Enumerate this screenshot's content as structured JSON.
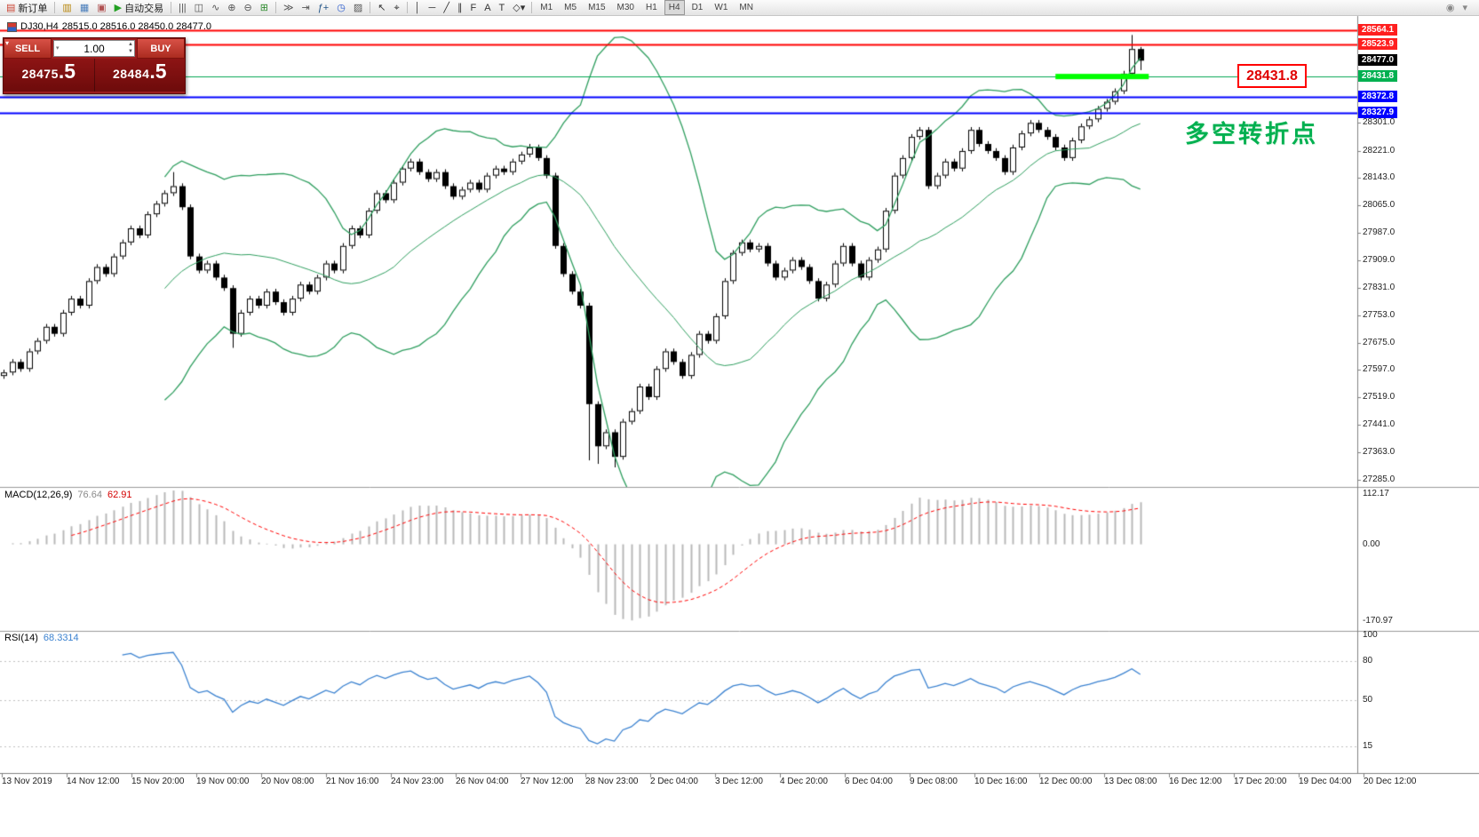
{
  "toolbar": {
    "left_items": [
      {
        "name": "new-order-button",
        "icon": "▤",
        "icon_color": "#cc4433",
        "label": "新订单"
      },
      {
        "sep": true
      },
      {
        "name": "charts-grid-icon",
        "icon": "▥",
        "icon_color": "#b8860b"
      },
      {
        "name": "market-watch-icon",
        "icon": "▦",
        "icon_color": "#4a7ebb"
      },
      {
        "name": "navigator-icon",
        "icon": "▣",
        "icon_color": "#b05050"
      },
      {
        "name": "autotrading-button",
        "icon": "▶",
        "icon_color": "#22a022",
        "label": "自动交易"
      },
      {
        "sep": true
      },
      {
        "name": "bar-chart-icon",
        "icon": "|||",
        "icon_color": "#555555"
      },
      {
        "name": "candlestick-chart-icon",
        "icon": "◫",
        "icon_color": "#555555"
      },
      {
        "name": "line-chart-icon",
        "icon": "∿",
        "icon_color": "#555555"
      },
      {
        "name": "zoom-in-icon",
        "icon": "⊕",
        "icon_color": "#555555"
      },
      {
        "name": "zoom-out-icon",
        "icon": "⊖",
        "icon_color": "#555555"
      },
      {
        "name": "tile-windows-icon",
        "icon": "⊞",
        "icon_color": "#2e8b2e"
      },
      {
        "sep": true
      },
      {
        "name": "auto-scroll-icon",
        "icon": "≫",
        "icon_color": "#555555"
      },
      {
        "name": "chart-shift-icon",
        "icon": "⇥",
        "icon_color": "#555555"
      },
      {
        "name": "indicators-icon",
        "icon": "ƒ+",
        "icon_color": "#225588"
      },
      {
        "name": "period-dropdown-icon",
        "icon": "◷",
        "icon_color": "#2255cc"
      },
      {
        "name": "templates-icon",
        "icon": "▨",
        "icon_color": "#555555"
      },
      {
        "sep": true
      },
      {
        "name": "cursor-icon",
        "icon": "↖",
        "icon_color": "#333333"
      },
      {
        "name": "crosshair-icon",
        "icon": "⌖",
        "icon_color": "#333333"
      },
      {
        "sep": true
      },
      {
        "name": "vertical-line-icon",
        "icon": "│",
        "icon_color": "#333333"
      },
      {
        "name": "horizontal-line-icon",
        "icon": "─",
        "icon_color": "#333333"
      },
      {
        "name": "trendline-icon",
        "icon": "╱",
        "icon_color": "#333333"
      },
      {
        "name": "channel-icon",
        "icon": "∥",
        "icon_color": "#333333"
      },
      {
        "name": "fibonacci-icon",
        "icon": "F",
        "icon_color": "#333333"
      },
      {
        "name": "text-icon",
        "icon": "A",
        "icon_color": "#333333"
      },
      {
        "name": "label-icon",
        "icon": "T",
        "icon_color": "#333333"
      },
      {
        "name": "shapes-icon",
        "icon": "◇▾",
        "icon_color": "#333333"
      }
    ],
    "timeframes": [
      "M1",
      "M5",
      "M15",
      "M30",
      "H1",
      "H4",
      "D1",
      "W1",
      "MN"
    ],
    "active_timeframe": "H4",
    "right_items": [
      {
        "name": "community-icon",
        "icon": "◉",
        "icon_color": "#888888"
      },
      {
        "name": "menu-arrow-icon",
        "icon": "▾",
        "icon_color": "#888888"
      }
    ]
  },
  "trade_panel": {
    "sell_label": "SELL",
    "buy_label": "BUY",
    "volume": "1.00",
    "sell_price_main": "28475",
    "sell_price_frac": ".5",
    "buy_price_main": "28484",
    "buy_price_frac": ".5"
  },
  "chart_header": {
    "symbol_period": "DJ30,H4",
    "ohlc": "28515.0 28516.0 28450.0 28477.0"
  },
  "annotations": {
    "price_label": "28431.8",
    "note_text": "多空转折点",
    "note_color": "#00b050"
  },
  "price_axis": {
    "special": [
      {
        "text": "28564.1",
        "bg": "#ff1f1f",
        "price": 28564.1
      },
      {
        "text": "28523.9",
        "bg": "#ff1f1f",
        "price": 28523.9
      },
      {
        "text": "28477.0",
        "bg": "#000000",
        "price": 28477.0
      },
      {
        "text": "28431.8",
        "bg": "#00b050",
        "price": 28431.8
      },
      {
        "text": "28372.8",
        "bg": "#0000ff",
        "price": 28372.8
      },
      {
        "text": "28327.9",
        "bg": "#0000ff",
        "price": 28327.9
      }
    ],
    "ticks": [
      "28301.0",
      "28221.0",
      "28143.0",
      "28065.0",
      "27987.0",
      "27909.0",
      "27831.0",
      "27753.0",
      "27675.0",
      "27597.0",
      "27519.0",
      "27441.0",
      "27363.0",
      "27285.0"
    ]
  },
  "time_axis": [
    "13 Nov 2019",
    "14 Nov 12:00",
    "15 Nov 20:00",
    "19 Nov 00:00",
    "20 Nov 08:00",
    "21 Nov 16:00",
    "24 Nov 23:00",
    "26 Nov 04:00",
    "27 Nov 12:00",
    "28 Nov 23:00",
    "2 Dec 04:00",
    "3 Dec 12:00",
    "4 Dec 20:00",
    "6 Dec 04:00",
    "9 Dec 08:00",
    "10 Dec 16:00",
    "12 Dec 00:00",
    "13 Dec 08:00",
    "16 Dec 12:00",
    "17 Dec 20:00",
    "19 Dec 04:00",
    "20 Dec 12:00"
  ],
  "chart_data": [
    {
      "type": "candlestick",
      "symbol": "DJ30",
      "timeframe": "H4",
      "last_ohlc": {
        "open": 28515.0,
        "high": 28516.0,
        "low": 28450.0,
        "close": 28477.0
      },
      "ylim": [
        27267,
        28604
      ],
      "closes": [
        27590,
        27620,
        27600,
        27650,
        27680,
        27720,
        27700,
        27760,
        27800,
        27780,
        27850,
        27890,
        27870,
        27920,
        27960,
        28000,
        27980,
        28040,
        28070,
        28100,
        28120,
        28060,
        27920,
        27880,
        27900,
        27860,
        27830,
        27700,
        27760,
        27800,
        27780,
        27820,
        27790,
        27760,
        27800,
        27840,
        27820,
        27860,
        27900,
        27880,
        27950,
        28000,
        27980,
        28050,
        28100,
        28080,
        28130,
        28170,
        28190,
        28160,
        28140,
        28160,
        28120,
        28090,
        28110,
        28130,
        28110,
        28150,
        28170,
        28160,
        28190,
        28210,
        28230,
        28200,
        28150,
        27950,
        27870,
        27820,
        27780,
        27500,
        27380,
        27420,
        27350,
        27450,
        27480,
        27550,
        27520,
        27600,
        27650,
        27620,
        27580,
        27640,
        27700,
        27680,
        27750,
        27850,
        27930,
        27960,
        27940,
        27950,
        27900,
        27860,
        27880,
        27910,
        27890,
        27850,
        27800,
        27840,
        27900,
        27950,
        27900,
        27860,
        27910,
        27940,
        28050,
        28150,
        28200,
        28260,
        28280,
        28120,
        28150,
        28190,
        28170,
        28220,
        28280,
        28240,
        28220,
        28200,
        28160,
        28230,
        28270,
        28300,
        28280,
        28260,
        28230,
        28200,
        28250,
        28290,
        28310,
        28340,
        28360,
        28390,
        28440,
        28510,
        28477
      ],
      "open_rule": "previous_close",
      "default_wick": 8,
      "wick_overrides": {
        "20": {
          "high": 28160
        },
        "27": {
          "low": 27660
        },
        "62": {
          "high": 28240
        },
        "69": {
          "low": 27340
        },
        "70": {
          "low": 27330
        },
        "72": {
          "low": 27320
        },
        "133": {
          "high": 28550
        },
        "134": {
          "high": 28516,
          "low": 28450
        }
      },
      "bollinger": {
        "period": 20,
        "deviation": 2,
        "color": "#2f9e5f"
      },
      "hlines": [
        {
          "price": 28564.1,
          "color": "#ff0000",
          "width": 2
        },
        {
          "price": 28523.9,
          "color": "#ff0000",
          "width": 2
        },
        {
          "price": 28431.8,
          "color": "#00a550",
          "width": 1
        },
        {
          "price": 28372.8,
          "color": "#0000ff",
          "width": 2
        },
        {
          "price": 28327.9,
          "color": "#0000ff",
          "width": 2
        }
      ],
      "highlight": {
        "price": 28431.8,
        "color": "#00ff00",
        "from_candle": 124,
        "to_candle": 135,
        "thickness": 6
      },
      "candle_up_color": "#ffffff",
      "candle_down_color": "#000000"
    },
    {
      "type": "macd",
      "label": "MACD(12,26,9)",
      "value_main": "76.64",
      "value_signal": "62.91",
      "params": {
        "fast": 12,
        "slow": 26,
        "signal": 9
      },
      "ylim": [
        -185,
        120
      ],
      "y_ticks": [
        "112.17",
        "0.00",
        "-170.97"
      ],
      "histogram_color": "#b9b9b9",
      "signal_color": "#ff0000",
      "source": "main_closes"
    },
    {
      "type": "rsi",
      "label": "RSI(14)",
      "value": "68.3314",
      "period": 14,
      "ylim": [
        0,
        102
      ],
      "y_ticks": [
        "100",
        "80",
        "50",
        "15"
      ],
      "levels": [
        80,
        50,
        15
      ],
      "line_color": "#3b82d0",
      "source": "main_closes"
    }
  ]
}
